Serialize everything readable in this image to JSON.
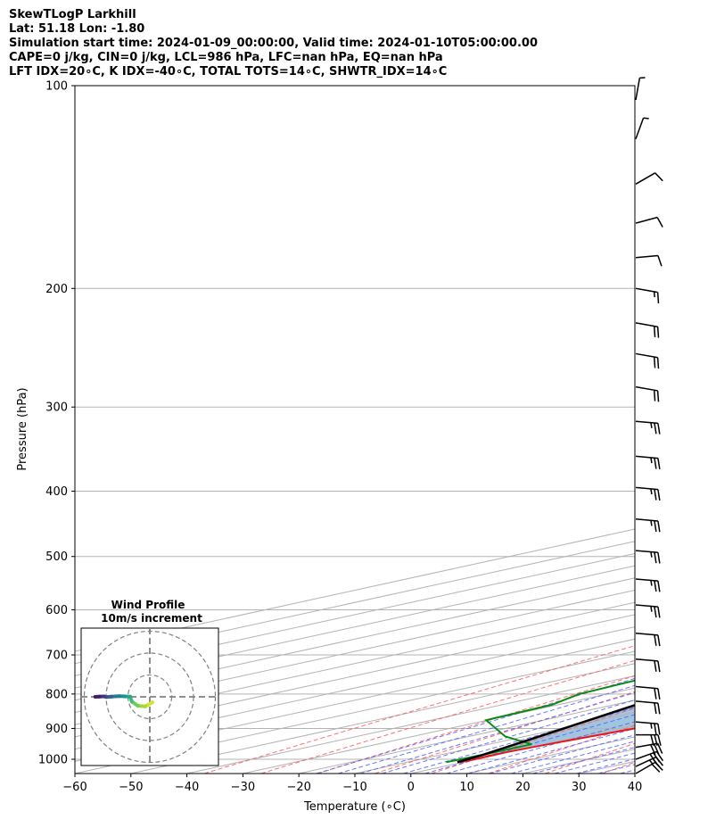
{
  "header": {
    "line1": "SkewTLogP Larkhill",
    "line2": "Lat: 51.18   Lon: -1.80",
    "line3": "Simulation start time: 2024-01-09_00:00:00, Valid time: 2024-01-10T05:00:00.00",
    "line4": "CAPE=0 j/kg, CIN=0 j/kg, LCL=986 hPa, LFC=nan hPa, EQ=nan hPa",
    "line5": "LFT IDX=20∘C, K IDX=-40∘C, TOTAL TOTS=14∘C, SHWTR_IDX=14∘C"
  },
  "chart_data": [
    {
      "type": "line",
      "subtype": "skew-T log-P",
      "xlabel": "Temperature (∘C)",
      "ylabel": "Pressure (hPa)",
      "xlim": [
        -60,
        40
      ],
      "ylim": [
        1050,
        100
      ],
      "y_scale": "log",
      "grid": true,
      "x_ticks": [
        -60,
        -50,
        -40,
        -30,
        -20,
        -10,
        0,
        10,
        20,
        30,
        40
      ],
      "x_tick_labels": [
        "−60",
        "−50",
        "−40",
        "−30",
        "−20",
        "−10",
        "0",
        "10",
        "20",
        "30",
        "40"
      ],
      "y_ticks": [
        1000,
        900,
        800,
        700,
        600,
        500,
        400,
        300,
        200,
        100
      ],
      "series": [
        {
          "role": "temperature",
          "color": "#e8161b",
          "points": [
            [
              1010,
              -0.5
            ],
            [
              1000,
              -0.3
            ],
            [
              975,
              -0.4
            ],
            [
              950,
              0.5
            ],
            [
              925,
              1.8
            ],
            [
              900,
              3.0
            ],
            [
              875,
              3.5
            ],
            [
              850,
              3.3
            ],
            [
              800,
              2.1
            ],
            [
              750,
              0.2
            ],
            [
              700,
              -2.5
            ],
            [
              650,
              -5.3
            ],
            [
              600,
              -8.7
            ],
            [
              550,
              -12.6
            ],
            [
              500,
              -17.0
            ],
            [
              450,
              -22.2
            ],
            [
              400,
              -28.1
            ],
            [
              350,
              -34.8
            ],
            [
              300,
              -43.0
            ],
            [
              275,
              -46.9
            ],
            [
              250,
              -48.2
            ],
            [
              230,
              -46.0
            ],
            [
              200,
              -43.9
            ],
            [
              180,
              -44.2
            ],
            [
              170,
              -44.4
            ],
            [
              150,
              -45.4
            ],
            [
              130,
              -46.5
            ],
            [
              115,
              -48.3
            ],
            [
              105,
              -49.3
            ],
            [
              100,
              -49.6
            ]
          ]
        },
        {
          "role": "dewpoint",
          "color": "#0a8a12",
          "points": [
            [
              1010,
              -3.0
            ],
            [
              1000,
              -2.8
            ],
            [
              975,
              -2.5
            ],
            [
              950,
              -2.4
            ],
            [
              925,
              -13.5
            ],
            [
              875,
              -30.2
            ],
            [
              830,
              -31.1
            ],
            [
              800,
              -35.0
            ],
            [
              760,
              -36.2
            ],
            [
              725,
              -36.0
            ],
            [
              680,
              -34.0
            ],
            [
              640,
              -30.0
            ],
            [
              600,
              -27.0
            ],
            [
              550,
              -31.0
            ],
            [
              500,
              -36.0
            ],
            [
              450,
              -42.0
            ],
            [
              400,
              -49.0
            ],
            [
              350,
              -57.0
            ],
            [
              300,
              -65.0
            ],
            [
              275,
              -68.5
            ],
            [
              250,
              -71.0
            ],
            [
              225,
              -75.0
            ],
            [
              200,
              -79.0
            ],
            [
              175,
              -84.0
            ],
            [
              160,
              -86.7
            ],
            [
              145,
              -86.2
            ],
            [
              130,
              -86.5
            ],
            [
              115,
              -88.0
            ],
            [
              100,
              -91.5
            ]
          ]
        },
        {
          "role": "parcel",
          "color": "#000000",
          "points": [
            [
              1010,
              -1.0
            ],
            [
              986,
              -2.4
            ],
            [
              900,
              -9.6
            ],
            [
              800,
              -19.0
            ],
            [
              700,
              -29.6
            ],
            [
              600,
              -42.4
            ],
            [
              500,
              -57.2
            ],
            [
              400,
              -75.0
            ],
            [
              300,
              -96.0
            ],
            [
              200,
              -123.0
            ],
            [
              100,
              -165.0
            ]
          ]
        }
      ]
    },
    {
      "type": "line",
      "subtype": "hodograph",
      "title": "Wind Profile",
      "subtitle": "10m/s increment",
      "ring_increment_ms": 10,
      "grid": true,
      "points": [
        [
          1.2,
          -2.5
        ],
        [
          -2.1,
          -4.4
        ],
        [
          -5.5,
          -4.1
        ],
        [
          -8.2,
          -2.2
        ],
        [
          -9.0,
          0.1
        ],
        [
          -11.5,
          0.2
        ],
        [
          -14.0,
          0.3
        ],
        [
          -17.5,
          0.1
        ],
        [
          -20.0,
          -0.1
        ],
        [
          -21.0,
          0.2
        ],
        [
          -23.0,
          0.1
        ],
        [
          -25.0,
          0.0
        ]
      ]
    }
  ],
  "colors": {
    "fill": "#a2c5df",
    "dry_adiabat": "#ff6060",
    "moist_adiabat": "#4f5fff",
    "mixing_ratio": "#9e9e9e"
  },
  "barbs_kt": [
    {
      "p": 1050,
      "speed": 22,
      "dir": 60
    },
    {
      "p": 1025,
      "speed": 25,
      "dir": 65
    },
    {
      "p": 1000,
      "speed": 28,
      "dir": 70
    },
    {
      "p": 960,
      "speed": 30,
      "dir": 80
    },
    {
      "p": 920,
      "speed": 28,
      "dir": 90
    },
    {
      "p": 880,
      "speed": 24,
      "dir": 95
    },
    {
      "p": 820,
      "speed": 22,
      "dir": 95
    },
    {
      "p": 780,
      "speed": 22,
      "dir": 95
    },
    {
      "p": 710,
      "speed": 20,
      "dir": 95
    },
    {
      "p": 650,
      "speed": 22,
      "dir": 95
    },
    {
      "p": 590,
      "speed": 23,
      "dir": 95
    },
    {
      "p": 540,
      "speed": 23,
      "dir": 95
    },
    {
      "p": 490,
      "speed": 24,
      "dir": 95
    },
    {
      "p": 440,
      "speed": 27,
      "dir": 95
    },
    {
      "p": 395,
      "speed": 27,
      "dir": 95
    },
    {
      "p": 355,
      "speed": 25,
      "dir": 95
    },
    {
      "p": 315,
      "speed": 24,
      "dir": 95
    },
    {
      "p": 280,
      "speed": 22,
      "dir": 100
    },
    {
      "p": 250,
      "speed": 20,
      "dir": 100
    },
    {
      "p": 225,
      "speed": 18,
      "dir": 100
    },
    {
      "p": 200,
      "speed": 17,
      "dir": 100
    },
    {
      "p": 180,
      "speed": 12,
      "dir": 85
    },
    {
      "p": 160,
      "speed": 12,
      "dir": 75
    },
    {
      "p": 140,
      "speed": 8,
      "dir": 60
    },
    {
      "p": 120,
      "speed": 6,
      "dir": 20
    },
    {
      "p": 105,
      "speed": 5,
      "dir": 10
    }
  ]
}
